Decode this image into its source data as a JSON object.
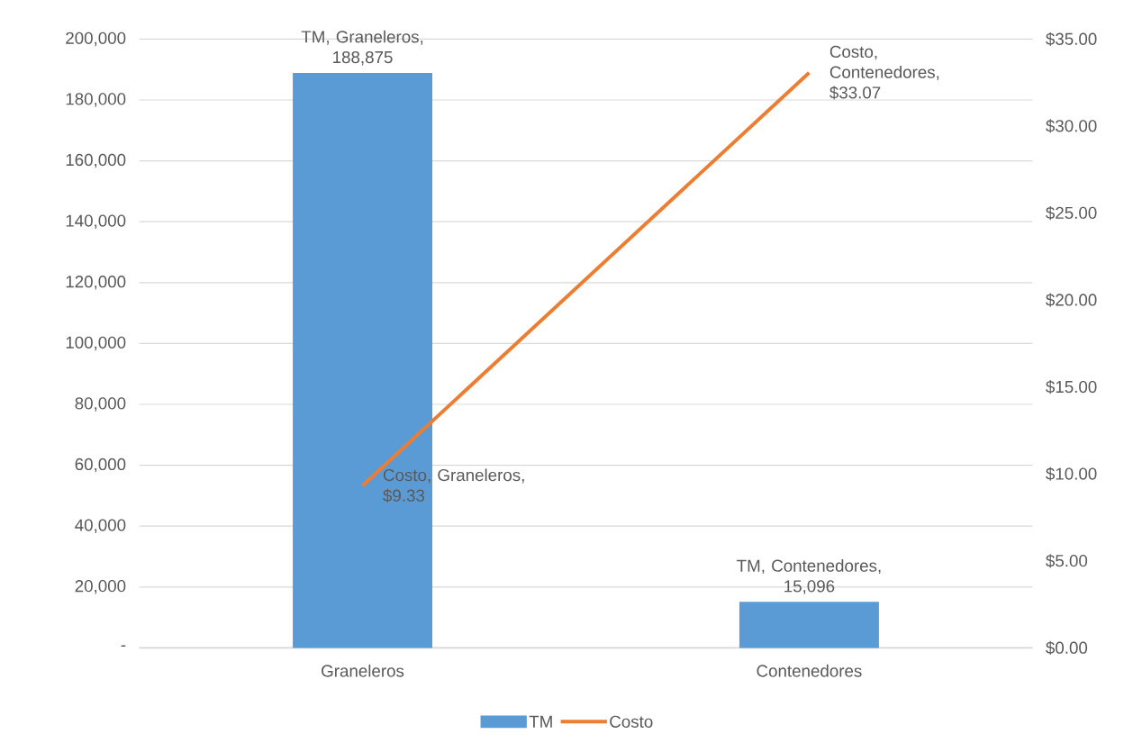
{
  "chart_data": {
    "type": "bar",
    "categories": [
      "Graneleros",
      "Contenedores"
    ],
    "series": [
      {
        "name": "TM",
        "color": "#5b9bd5",
        "values": [
          188875,
          15096
        ],
        "value_labels": [
          "TM, Graneleros, 188,875",
          "TM, Contenedores, 15,096"
        ]
      },
      {
        "name": "Costo",
        "type": "line",
        "axis": "y2",
        "color": "#ed7d31",
        "values": [
          9.33,
          33.07
        ],
        "value_labels": [
          "Costo, Graneleros, $9.33",
          "Costo, Contenedores, $33.07"
        ]
      }
    ],
    "ylim": [
      0,
      200000
    ],
    "yticks": [
      {
        "value": 0,
        "label": "-"
      },
      {
        "value": 20000,
        "label": "20,000"
      },
      {
        "value": 40000,
        "label": "40,000"
      },
      {
        "value": 60000,
        "label": "60,000"
      },
      {
        "value": 80000,
        "label": "80,000"
      },
      {
        "value": 100000,
        "label": "100,000"
      },
      {
        "value": 120000,
        "label": "120,000"
      },
      {
        "value": 140000,
        "label": "140,000"
      },
      {
        "value": 160000,
        "label": "160,000"
      },
      {
        "value": 180000,
        "label": "180,000"
      },
      {
        "value": 200000,
        "label": "200,000"
      }
    ],
    "y2lim": [
      0,
      35
    ],
    "y2ticks": [
      {
        "value": 0,
        "label": "$0.00"
      },
      {
        "value": 5,
        "label": "$5.00"
      },
      {
        "value": 10,
        "label": "$10.00"
      },
      {
        "value": 15,
        "label": "$15.00"
      },
      {
        "value": 20,
        "label": "$20.00"
      },
      {
        "value": 25,
        "label": "$25.00"
      },
      {
        "value": 30,
        "label": "$30.00"
      },
      {
        "value": 35,
        "label": "$35.00"
      }
    ],
    "grid": "y",
    "legend": "bottom"
  }
}
